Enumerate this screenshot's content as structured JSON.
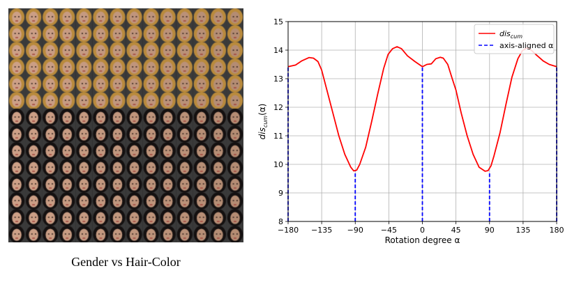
{
  "figure": {
    "left_caption": "Gender vs Hair-Color",
    "image_grid": {
      "rows": 14,
      "cols": 14,
      "row_groups": [
        {
          "rows": 6,
          "hair": "#b98a3c",
          "shade": "#d9a98a"
        },
        {
          "rows": 8,
          "hair": "#141010",
          "shade": "#c99a84"
        }
      ]
    }
  },
  "chart_data": {
    "type": "line",
    "xlabel": "Rotation degree α",
    "ylabel_base": "dis",
    "ylabel_sub": "cum",
    "ylabel_tail": "(α)",
    "xlim": [
      -180,
      180
    ],
    "ylim": [
      8,
      15
    ],
    "xticks": [
      -180,
      -135,
      -90,
      -45,
      0,
      45,
      90,
      135,
      180
    ],
    "xtick_labels": [
      "−180",
      "−135",
      "−90",
      "−45",
      "0",
      "45",
      "90",
      "135",
      "180"
    ],
    "yticks": [
      8,
      9,
      10,
      11,
      12,
      13,
      14,
      15
    ],
    "ytick_labels": [
      "8",
      "9",
      "10",
      "11",
      "12",
      "13",
      "14",
      "15"
    ],
    "grid": true,
    "legend": {
      "position": "top-right",
      "entries": [
        {
          "label_base": "dis",
          "label_sub": "cum",
          "color": "#ff0000",
          "style": "solid"
        },
        {
          "label_text": "axis-aligned α",
          "color": "#0000ff",
          "style": "dashed"
        }
      ]
    },
    "series": [
      {
        "color": "#ff0000",
        "x": [
          -180,
          -170,
          -162,
          -152,
          -146,
          -140,
          -135,
          -128,
          -120,
          -112,
          -104,
          -96,
          -92,
          -88,
          -84,
          -76,
          -68,
          -60,
          -52,
          -46,
          -40,
          -34,
          -28,
          -20,
          -10,
          0,
          6,
          12,
          18,
          24,
          28,
          34,
          40,
          45,
          52,
          60,
          68,
          76,
          84,
          88,
          92,
          96,
          104,
          112,
          120,
          128,
          134,
          140,
          146,
          152,
          162,
          170,
          180
        ],
        "y": [
          13.42,
          13.48,
          13.62,
          13.74,
          13.72,
          13.6,
          13.3,
          12.6,
          11.8,
          11.0,
          10.35,
          9.9,
          9.77,
          9.8,
          10.0,
          10.6,
          11.5,
          12.45,
          13.35,
          13.85,
          14.05,
          14.12,
          14.05,
          13.8,
          13.6,
          13.42,
          13.5,
          13.52,
          13.7,
          13.75,
          13.72,
          13.5,
          13.0,
          12.6,
          11.8,
          11.0,
          10.35,
          9.9,
          9.76,
          9.78,
          9.95,
          10.3,
          11.1,
          12.1,
          13.05,
          13.7,
          13.98,
          14.08,
          14.0,
          13.85,
          13.62,
          13.5,
          13.42
        ]
      }
    ],
    "vlines": {
      "color": "#0000ff",
      "x": [
        -180,
        -90,
        0,
        90,
        180
      ],
      "y": [
        13.42,
        9.77,
        13.42,
        9.76,
        13.42
      ]
    }
  }
}
